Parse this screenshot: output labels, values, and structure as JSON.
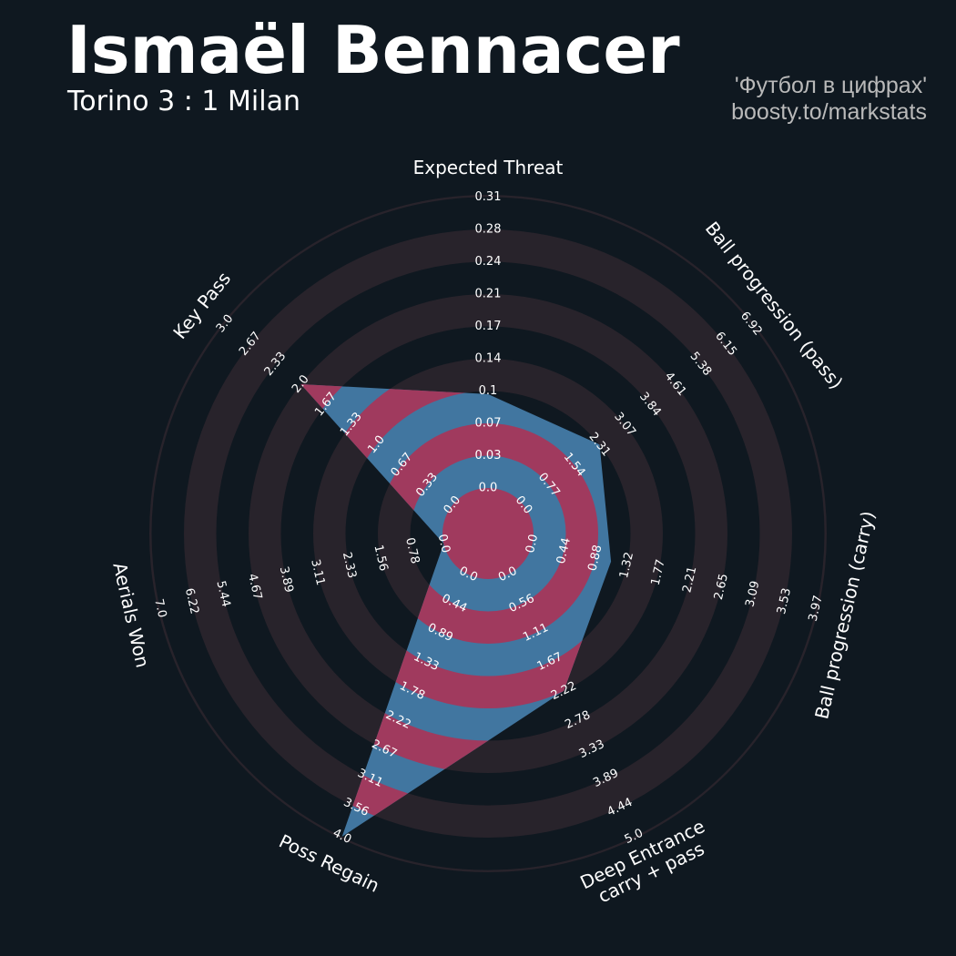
{
  "header": {
    "player_name": "Ismaël Bennacer",
    "match": "Torino 3 : 1 Milan",
    "credit_line1": "'Футбол в цифрах'",
    "credit_line2": "boosty.to/markstats"
  },
  "colors": {
    "background": "#0f1820",
    "ring_band": "#28232b",
    "polygon_blue": "#4176a0",
    "polygon_red": "#a03a5e",
    "text": "#ffffff"
  },
  "chart_data": {
    "type": "radar",
    "params": [
      {
        "label": "Expected Threat",
        "value": 0.1,
        "ticks": [
          "0.0",
          "0.03",
          "0.07",
          "0.1",
          "0.14",
          "0.17",
          "0.21",
          "0.24",
          "0.28",
          "0.31"
        ]
      },
      {
        "label": "Ball progression (pass)",
        "value": 2.31,
        "ticks": [
          "0.0",
          "0.77",
          "1.54",
          "2.31",
          "3.07",
          "3.84",
          "4.61",
          "5.38",
          "6.15",
          "6.92"
        ]
      },
      {
        "label": "Ball progression (carry)",
        "value": 1.1,
        "ticks": [
          "0.0",
          "0.44",
          "0.88",
          "1.32",
          "1.77",
          "2.21",
          "2.65",
          "3.09",
          "3.53",
          "3.97"
        ]
      },
      {
        "label": "Deep Entrance\ncarry + pass",
        "value": 2.22,
        "ticks": [
          "0.0",
          "0.56",
          "1.11",
          "1.67",
          "2.22",
          "2.78",
          "3.33",
          "3.89",
          "4.44",
          "5.0"
        ]
      },
      {
        "label": "Poss Regain",
        "value": 4.0,
        "ticks": [
          "0.0",
          "0.44",
          "0.89",
          "1.33",
          "1.78",
          "2.22",
          "2.67",
          "3.11",
          "3.56",
          "4.0"
        ]
      },
      {
        "label": "Aerials Won",
        "value": 0.0,
        "ticks": [
          "0.0",
          "0.78",
          "1.56",
          "2.33",
          "3.11",
          "3.89",
          "4.67",
          "5.44",
          "6.22",
          "7.0"
        ]
      },
      {
        "label": "Key Pass",
        "value": 2.0,
        "ticks": [
          "0.0",
          "0.33",
          "0.67",
          "1.0",
          "1.33",
          "1.67",
          "2.0",
          "2.33",
          "2.67",
          "3.0"
        ]
      }
    ]
  }
}
